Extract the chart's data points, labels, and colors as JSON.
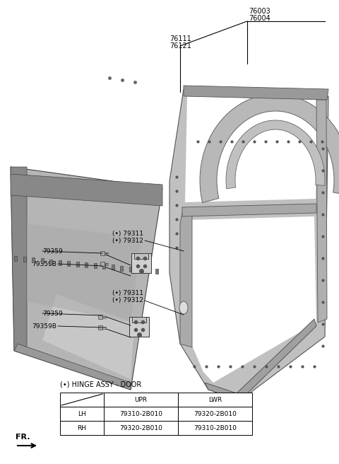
{
  "bg_color": "#ffffff",
  "label_76003": "76003",
  "label_76004": "76004",
  "label_76111": "76111",
  "label_76121": "76121",
  "label_79311_upper": "(•) 79311",
  "label_79312_upper": "(•) 79312",
  "label_79311_lower": "(•) 79311",
  "label_79312_lower": "(•) 79312",
  "label_79359_upper": "79359",
  "label_79359B_upper": "79359B",
  "label_79359_lower": "79359",
  "label_79359B_lower": "79359B",
  "hinge_note": "(•) HINGE ASSY - DOOR",
  "table_headers": [
    "",
    "UPR",
    "LWR"
  ],
  "table_row1": [
    "LH",
    "79310-2B010",
    "79320-2B010"
  ],
  "table_row2": [
    "RH",
    "79320-2B010",
    "79310-2B010"
  ],
  "fr_label": "FR.",
  "line_color": "#000000",
  "text_color": "#000000",
  "font_size": 7.0,
  "small_font": 6.5
}
